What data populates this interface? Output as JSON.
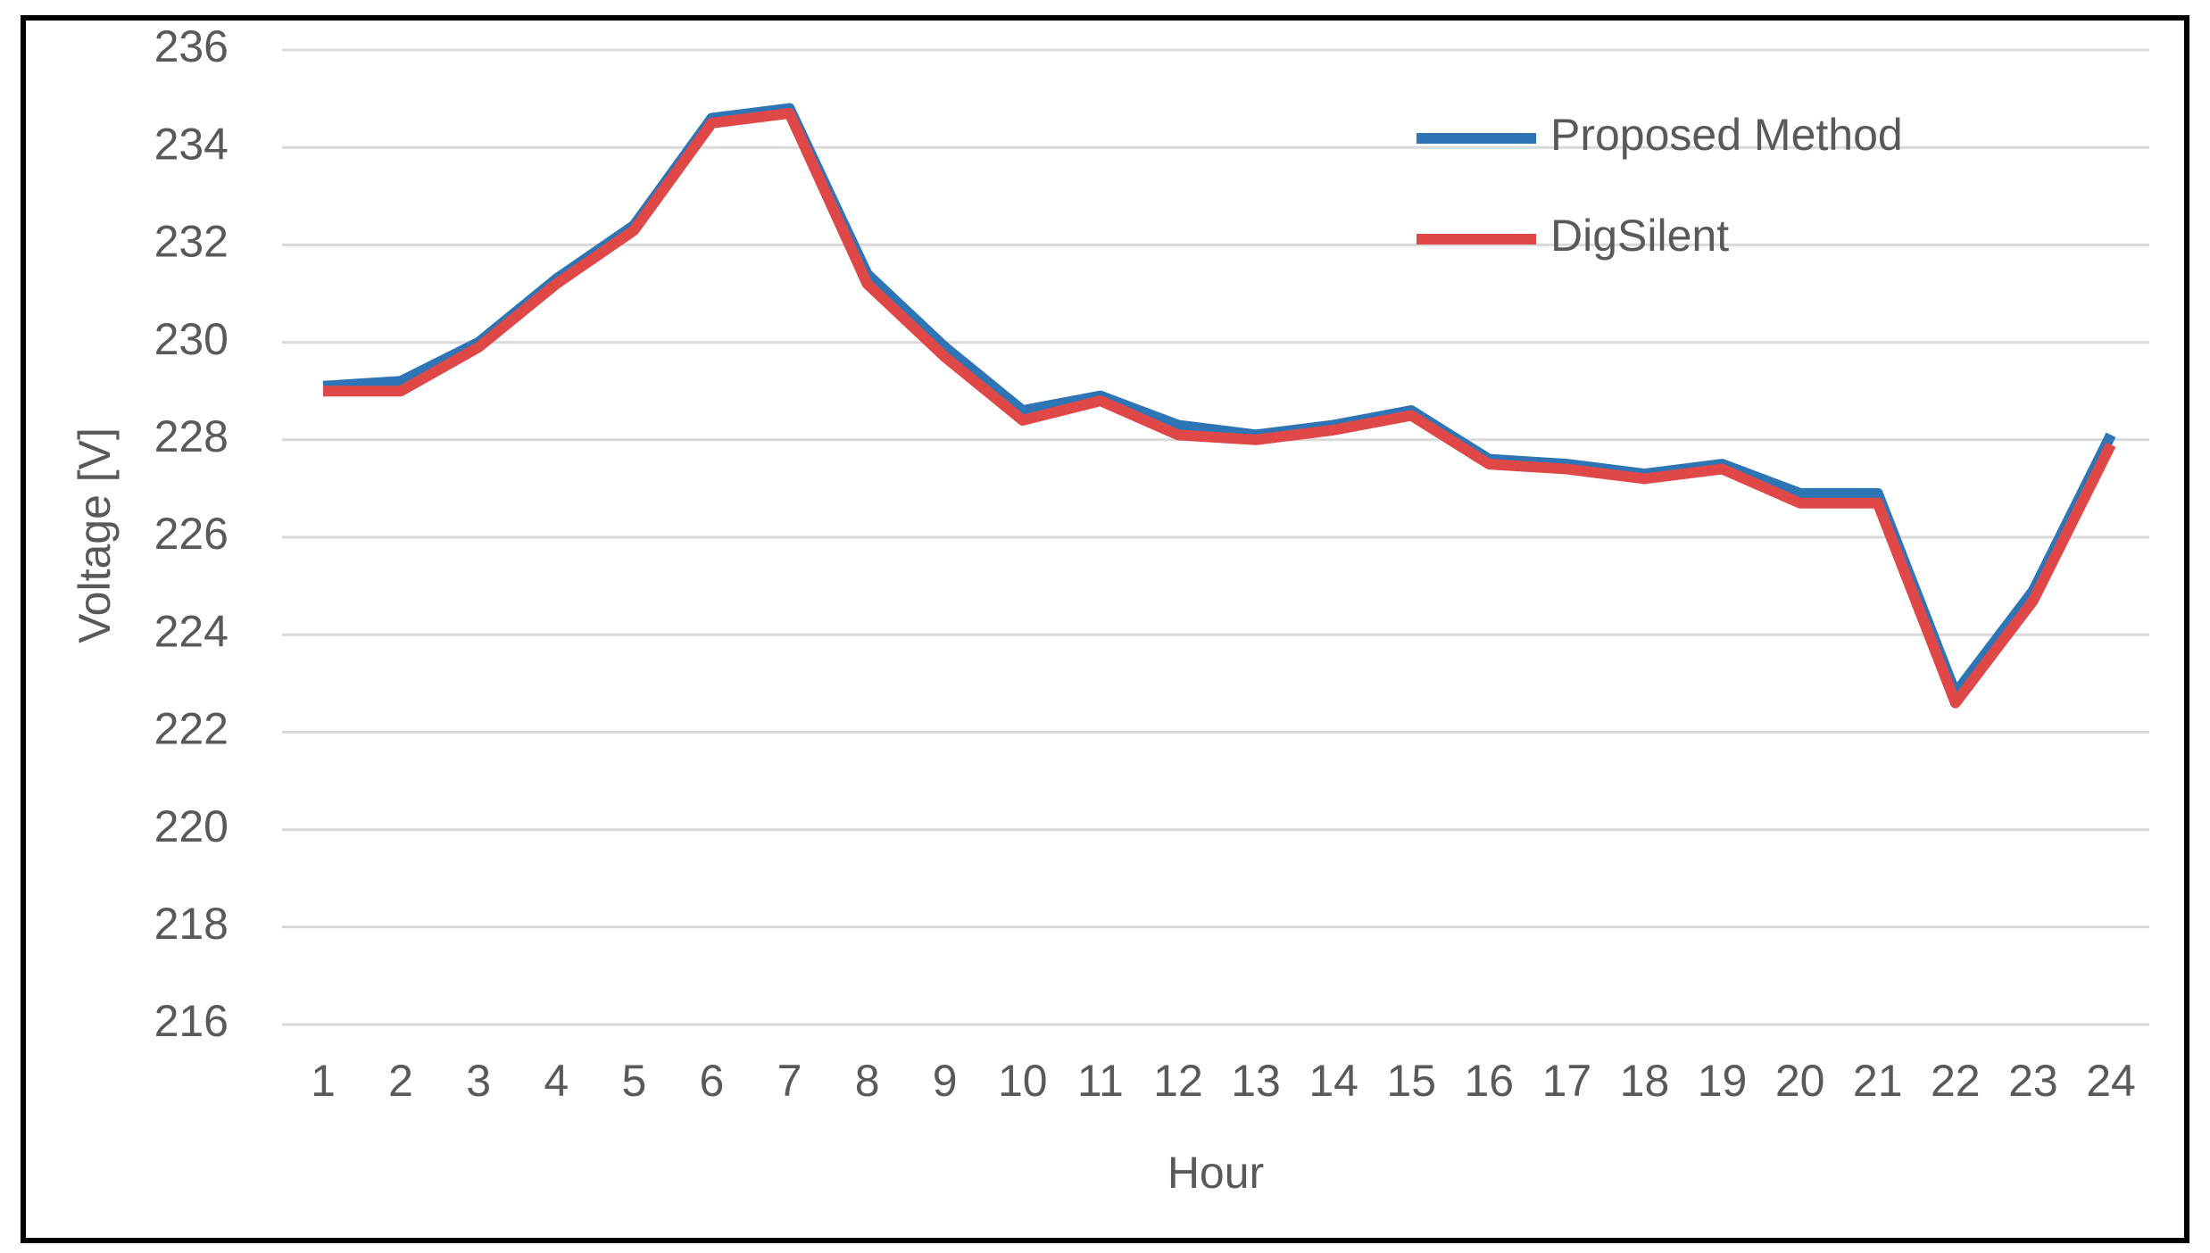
{
  "chart_data": {
    "type": "line",
    "x_label": "Hour",
    "y_label": "Voltage [V]",
    "categories": [
      "1",
      "2",
      "3",
      "4",
      "5",
      "6",
      "7",
      "8",
      "9",
      "10",
      "11",
      "12",
      "13",
      "14",
      "15",
      "16",
      "17",
      "18",
      "19",
      "20",
      "21",
      "22",
      "23",
      "24"
    ],
    "series": [
      {
        "name": "Proposed Method",
        "color": "#2e75b6",
        "values": [
          229.1,
          229.2,
          230.0,
          231.3,
          232.4,
          234.6,
          234.8,
          231.4,
          229.9,
          228.6,
          228.9,
          228.3,
          228.1,
          228.3,
          228.6,
          227.6,
          227.5,
          227.3,
          227.5,
          226.9,
          226.9,
          222.8,
          224.9,
          228.1
        ]
      },
      {
        "name": "DigSilent",
        "color": "#e04848",
        "values": [
          229.0,
          229.0,
          229.9,
          231.2,
          232.3,
          234.5,
          234.7,
          231.2,
          229.7,
          228.4,
          228.8,
          228.1,
          228.0,
          228.2,
          228.5,
          227.5,
          227.4,
          227.2,
          227.4,
          226.7,
          226.7,
          222.6,
          224.7,
          227.9
        ]
      }
    ],
    "ylim": [
      216,
      236
    ],
    "yticks": [
      216,
      218,
      220,
      222,
      224,
      226,
      228,
      230,
      232,
      234,
      236
    ],
    "grid": true,
    "legend": "top-right"
  }
}
